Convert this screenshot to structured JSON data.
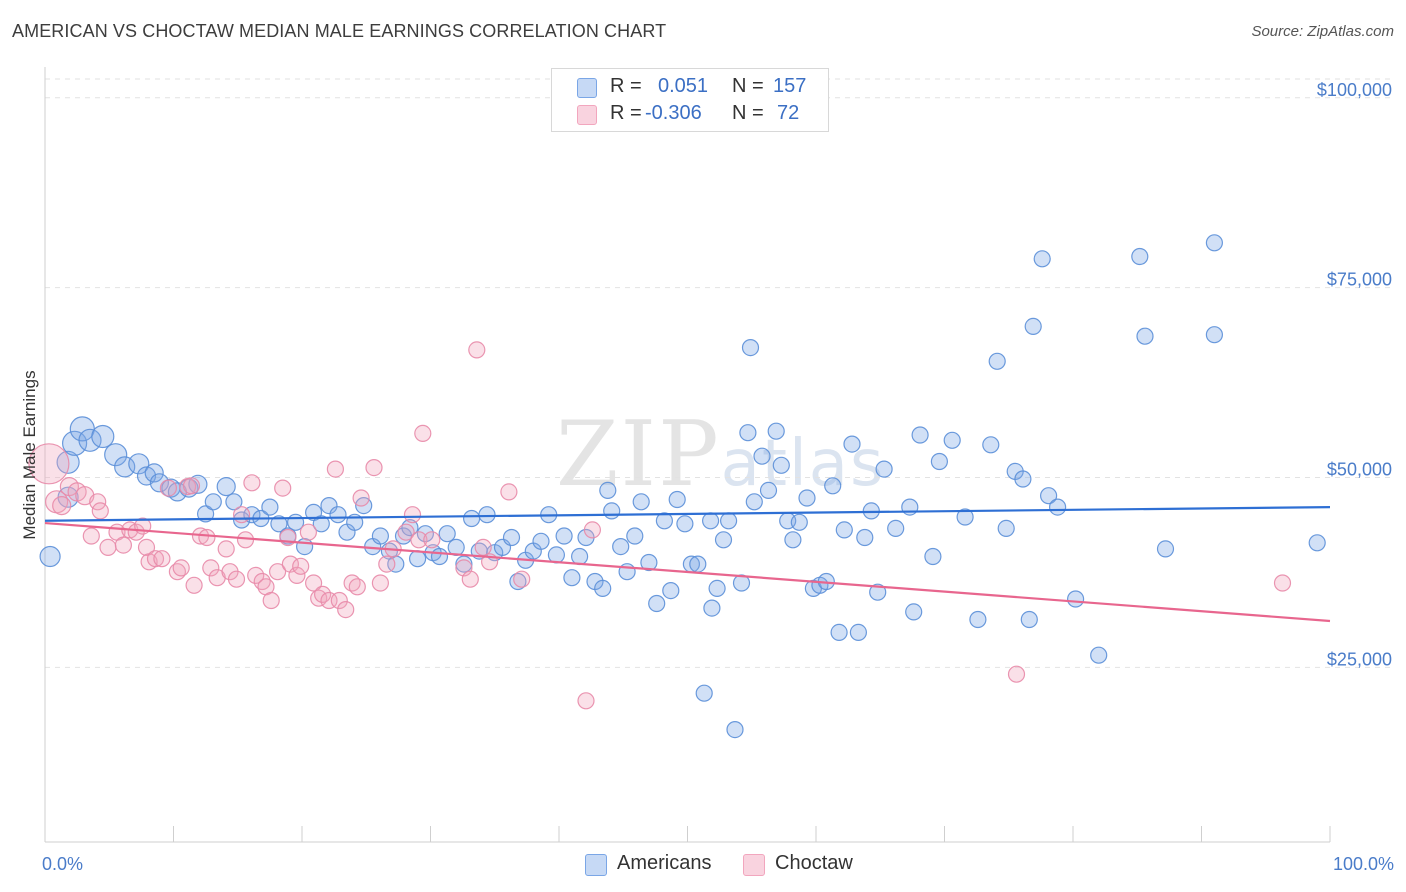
{
  "header": {
    "title": "AMERICAN VS CHOCTAW MEDIAN MALE EARNINGS CORRELATION CHART",
    "source": "Source: ZipAtlas.com"
  },
  "watermark": {
    "zip": "ZIP",
    "atlas": "atlas"
  },
  "legend": {
    "americans": {
      "r_label": "R =",
      "r_value": "0.051",
      "n_label": "N =",
      "n_value": "157",
      "color": "#7aa6e6"
    },
    "choctaw": {
      "r_label": "R =",
      "r_value": "-0.306",
      "n_label": "N =",
      "n_value": "72",
      "color": "#f2a6be"
    }
  },
  "bottom_legend": {
    "americans": "Americans",
    "choctaw": "Choctaw"
  },
  "chart_data": {
    "type": "scatter",
    "title": "AMERICAN VS CHOCTAW MEDIAN MALE EARNINGS CORRELATION CHART",
    "xlabel": "",
    "ylabel": "Median Male Earnings",
    "xlim": [
      0,
      100
    ],
    "ylim": [
      2000,
      103000
    ],
    "x_tick_labels": [
      "0.0%",
      "100.0%"
    ],
    "y_ticks": [
      {
        "value": 25000,
        "label": "$25,000"
      },
      {
        "value": 50000,
        "label": "$50,000"
      },
      {
        "value": 75000,
        "label": "$75,000"
      },
      {
        "value": 100000,
        "label": "$100,000"
      }
    ],
    "grid": true,
    "series": [
      {
        "name": "Americans",
        "color": "#7aa6e6",
        "stroke": "#5b8fd8",
        "trend": {
          "x": [
            0,
            100
          ],
          "y": [
            44300,
            46100
          ],
          "color": "#2e6fd4"
        },
        "points": [
          [
            0.4,
            39.6,
            10
          ],
          [
            1.8,
            47.4,
            10
          ],
          [
            1.8,
            52,
            11
          ],
          [
            2.3,
            54.5,
            12
          ],
          [
            2.9,
            56.4,
            12
          ],
          [
            3.5,
            54.9,
            11
          ],
          [
            4.5,
            55.4,
            11
          ],
          [
            5.5,
            53,
            11
          ],
          [
            6.2,
            51.4,
            10
          ],
          [
            7.3,
            51.8,
            10
          ],
          [
            7.9,
            50.2,
            9
          ],
          [
            8.5,
            50.6,
            9
          ],
          [
            8.9,
            49.3,
            9
          ],
          [
            9.8,
            48.6,
            9
          ],
          [
            10.3,
            48.1,
            9
          ],
          [
            11.2,
            48.6,
            9
          ],
          [
            11.9,
            49.1,
            9
          ],
          [
            12.5,
            45.2,
            8
          ],
          [
            13.1,
            46.8,
            8
          ],
          [
            14.1,
            48.8,
            9
          ],
          [
            14.7,
            46.8,
            8
          ],
          [
            15.3,
            44.4,
            8
          ],
          [
            16.1,
            45.1,
            8
          ],
          [
            16.8,
            44.6,
            8
          ],
          [
            17.5,
            46.1,
            8
          ],
          [
            18.2,
            43.9,
            8
          ],
          [
            18.9,
            42.3,
            8
          ],
          [
            19.5,
            44.1,
            8
          ],
          [
            20.2,
            40.9,
            8
          ],
          [
            20.9,
            45.4,
            8
          ],
          [
            21.5,
            43.9,
            8
          ],
          [
            22.1,
            46.3,
            8
          ],
          [
            22.8,
            45.1,
            8
          ],
          [
            23.5,
            42.8,
            8
          ],
          [
            24.1,
            44.1,
            8
          ],
          [
            24.8,
            46.3,
            8
          ],
          [
            25.5,
            40.9,
            8
          ],
          [
            26.1,
            42.3,
            8
          ],
          [
            26.8,
            40.3,
            8
          ],
          [
            27.3,
            38.6,
            8
          ],
          [
            27.9,
            42.3,
            8
          ],
          [
            28.4,
            43.4,
            8
          ],
          [
            29.0,
            39.3,
            8
          ],
          [
            29.6,
            42.6,
            8
          ],
          [
            30.2,
            40.1,
            8
          ],
          [
            30.7,
            39.6,
            8
          ],
          [
            31.3,
            42.6,
            8
          ],
          [
            32.0,
            40.8,
            8
          ],
          [
            32.6,
            38.6,
            8
          ],
          [
            33.2,
            44.6,
            8
          ],
          [
            33.8,
            40.3,
            8
          ],
          [
            34.4,
            45.1,
            8
          ],
          [
            35.0,
            40.1,
            8
          ],
          [
            35.6,
            40.8,
            8
          ],
          [
            36.3,
            42.1,
            8
          ],
          [
            36.8,
            36.3,
            8
          ],
          [
            37.4,
            39.1,
            8
          ],
          [
            38.0,
            40.3,
            8
          ],
          [
            38.6,
            41.6,
            8
          ],
          [
            39.2,
            45.1,
            8
          ],
          [
            39.8,
            39.8,
            8
          ],
          [
            40.4,
            42.3,
            8
          ],
          [
            41.0,
            36.8,
            8
          ],
          [
            41.6,
            39.6,
            8
          ],
          [
            42.1,
            42.1,
            8
          ],
          [
            42.8,
            36.3,
            8
          ],
          [
            43.4,
            35.4,
            8
          ],
          [
            43.8,
            48.3,
            8
          ],
          [
            44.1,
            45.6,
            8
          ],
          [
            44.8,
            40.9,
            8
          ],
          [
            45.3,
            37.6,
            8
          ],
          [
            45.9,
            42.3,
            8
          ],
          [
            46.4,
            46.8,
            8
          ],
          [
            47.0,
            38.8,
            8
          ],
          [
            47.6,
            33.4,
            8
          ],
          [
            48.2,
            44.3,
            8
          ],
          [
            48.7,
            35.1,
            8
          ],
          [
            49.2,
            47.1,
            8
          ],
          [
            49.8,
            43.9,
            8
          ],
          [
            50.3,
            38.6,
            8
          ],
          [
            50.8,
            38.6,
            8
          ],
          [
            51.3,
            21.6,
            8
          ],
          [
            51.8,
            44.3,
            8
          ],
          [
            51.9,
            32.8,
            8
          ],
          [
            52.3,
            35.4,
            8
          ],
          [
            52.8,
            41.8,
            8
          ],
          [
            53.2,
            44.3,
            8
          ],
          [
            53.7,
            16.8,
            8
          ],
          [
            54.2,
            36.1,
            8
          ],
          [
            54.7,
            55.9,
            8
          ],
          [
            54.9,
            67.1,
            8
          ],
          [
            55.2,
            46.8,
            8
          ],
          [
            55.8,
            52.8,
            8
          ],
          [
            56.3,
            48.3,
            8
          ],
          [
            56.9,
            56.1,
            8
          ],
          [
            57.3,
            51.6,
            8
          ],
          [
            57.8,
            44.3,
            8
          ],
          [
            58.2,
            41.8,
            8
          ],
          [
            58.7,
            44.1,
            8
          ],
          [
            59.3,
            47.3,
            8
          ],
          [
            59.8,
            35.4,
            8
          ],
          [
            60.3,
            35.8,
            8
          ],
          [
            60.8,
            36.3,
            8
          ],
          [
            61.3,
            48.9,
            8
          ],
          [
            61.8,
            29.6,
            8
          ],
          [
            62.2,
            43.1,
            8
          ],
          [
            62.8,
            54.4,
            8
          ],
          [
            63.3,
            29.6,
            8
          ],
          [
            63.8,
            42.1,
            8
          ],
          [
            64.3,
            45.6,
            8
          ],
          [
            64.8,
            34.9,
            8
          ],
          [
            65.3,
            51.1,
            8
          ],
          [
            66.2,
            43.3,
            8
          ],
          [
            67.3,
            46.1,
            8
          ],
          [
            67.6,
            32.3,
            8
          ],
          [
            68.1,
            55.6,
            8
          ],
          [
            69.1,
            39.6,
            8
          ],
          [
            69.6,
            52.1,
            8
          ],
          [
            70.6,
            54.9,
            8
          ],
          [
            71.6,
            44.8,
            8
          ],
          [
            72.6,
            31.3,
            8
          ],
          [
            73.6,
            54.3,
            8
          ],
          [
            74.1,
            65.3,
            8
          ],
          [
            74.8,
            43.3,
            8
          ],
          [
            75.5,
            50.8,
            8
          ],
          [
            76.1,
            49.8,
            8
          ],
          [
            76.6,
            31.3,
            8
          ],
          [
            76.9,
            69.9,
            8
          ],
          [
            77.6,
            78.8,
            8
          ],
          [
            78.1,
            47.6,
            8
          ],
          [
            78.8,
            46.1,
            8
          ],
          [
            80.2,
            34.0,
            8
          ],
          [
            82.0,
            26.6,
            8
          ],
          [
            85.2,
            79.1,
            8
          ],
          [
            85.6,
            68.6,
            8
          ],
          [
            87.2,
            40.6,
            8
          ],
          [
            91.0,
            68.8,
            8
          ],
          [
            91.0,
            80.9,
            8
          ],
          [
            99.0,
            41.4,
            8
          ]
        ]
      },
      {
        "name": "Choctaw",
        "color": "#f2a6be",
        "stroke": "#e88aa8",
        "trend": {
          "x": [
            0,
            100
          ],
          "y": [
            44000,
            31100
          ],
          "color": "#e8668e"
        },
        "points": [
          [
            0.3,
            51.8,
            20
          ],
          [
            0.9,
            46.8,
            11
          ],
          [
            1.3,
            46.3,
            9
          ],
          [
            1.9,
            48.8,
            9
          ],
          [
            2.5,
            48.1,
            9
          ],
          [
            3.1,
            47.6,
            9
          ],
          [
            3.6,
            42.3,
            8
          ],
          [
            4.1,
            46.8,
            8
          ],
          [
            4.3,
            45.6,
            8
          ],
          [
            4.9,
            40.8,
            8
          ],
          [
            5.6,
            42.8,
            8
          ],
          [
            6.1,
            41.1,
            8
          ],
          [
            6.6,
            43.1,
            8
          ],
          [
            7.1,
            42.8,
            8
          ],
          [
            7.6,
            43.6,
            8
          ],
          [
            7.9,
            40.8,
            8
          ],
          [
            8.1,
            38.9,
            8
          ],
          [
            8.6,
            39.3,
            8
          ],
          [
            9.1,
            39.3,
            8
          ],
          [
            9.6,
            48.6,
            8
          ],
          [
            10.3,
            37.6,
            8
          ],
          [
            10.6,
            38.1,
            8
          ],
          [
            11.1,
            48.8,
            8
          ],
          [
            11.4,
            48.9,
            8
          ],
          [
            11.6,
            35.8,
            8
          ],
          [
            12.1,
            42.3,
            8
          ],
          [
            12.6,
            42.1,
            8
          ],
          [
            12.9,
            38.1,
            8
          ],
          [
            13.4,
            36.8,
            8
          ],
          [
            14.1,
            40.6,
            8
          ],
          [
            14.4,
            37.6,
            8
          ],
          [
            14.9,
            36.6,
            8
          ],
          [
            15.3,
            45.1,
            8
          ],
          [
            15.6,
            41.8,
            8
          ],
          [
            16.1,
            49.3,
            8
          ],
          [
            16.4,
            37.1,
            8
          ],
          [
            16.9,
            36.3,
            8
          ],
          [
            17.2,
            35.6,
            8
          ],
          [
            17.6,
            33.8,
            8
          ],
          [
            18.1,
            37.6,
            8
          ],
          [
            18.5,
            48.6,
            8
          ],
          [
            18.9,
            42.1,
            8
          ],
          [
            19.1,
            38.6,
            8
          ],
          [
            19.6,
            37.1,
            8
          ],
          [
            19.9,
            38.3,
            8
          ],
          [
            20.5,
            42.8,
            8
          ],
          [
            20.9,
            36.1,
            8
          ],
          [
            21.3,
            34.1,
            8
          ],
          [
            21.6,
            34.6,
            8
          ],
          [
            22.1,
            33.8,
            8
          ],
          [
            22.6,
            51.1,
            8
          ],
          [
            22.9,
            33.8,
            8
          ],
          [
            23.4,
            32.6,
            8
          ],
          [
            23.9,
            36.1,
            8
          ],
          [
            24.3,
            35.6,
            8
          ],
          [
            24.6,
            47.3,
            8
          ],
          [
            25.6,
            51.3,
            8
          ],
          [
            26.1,
            36.1,
            8
          ],
          [
            26.6,
            38.6,
            8
          ],
          [
            27.1,
            40.6,
            8
          ],
          [
            28.1,
            42.8,
            8
          ],
          [
            28.6,
            45.1,
            8
          ],
          [
            29.1,
            41.8,
            8
          ],
          [
            29.4,
            55.8,
            8
          ],
          [
            30.1,
            41.8,
            8
          ],
          [
            32.6,
            38.1,
            8
          ],
          [
            33.1,
            36.6,
            8
          ],
          [
            33.6,
            66.8,
            8
          ],
          [
            34.1,
            40.8,
            8
          ],
          [
            34.6,
            38.9,
            8
          ],
          [
            36.1,
            48.1,
            8
          ],
          [
            37.1,
            36.6,
            8
          ],
          [
            42.1,
            20.6,
            8
          ],
          [
            42.6,
            43.1,
            8
          ],
          [
            75.6,
            24.1,
            8
          ],
          [
            96.3,
            36.1,
            8
          ]
        ]
      }
    ]
  }
}
